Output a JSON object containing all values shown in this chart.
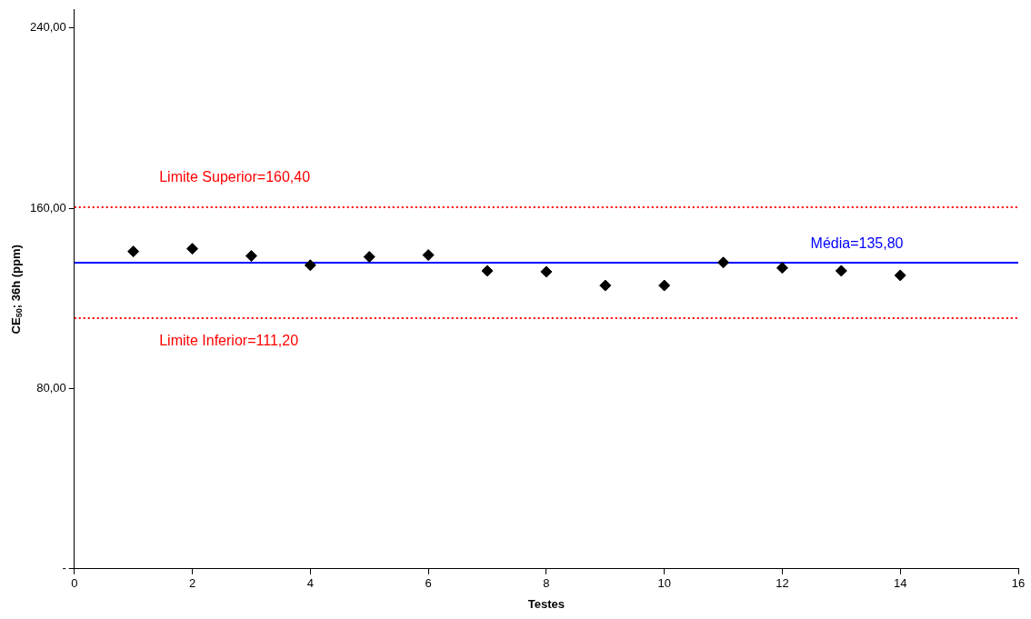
{
  "chart_data": {
    "type": "scatter",
    "xlabel": "Testes",
    "ylabel": "CE$_{50}$; 36h (ppm)",
    "x": [
      1,
      2,
      3,
      4,
      5,
      6,
      7,
      8,
      9,
      10,
      11,
      12,
      13,
      14
    ],
    "series": [
      {
        "color": "#000000",
        "values": [
          140.8,
          142.0,
          138.8,
          134.7,
          138.4,
          139.2,
          132.2,
          131.8,
          125.7,
          125.7,
          135.9,
          133.5,
          132.2,
          130.2
        ]
      }
    ],
    "marker": "diamond",
    "xlim": [
      0,
      16
    ],
    "xticks": [
      0,
      2,
      4,
      6,
      8,
      10,
      12,
      14,
      16
    ],
    "ylim": [
      0,
      248
    ],
    "yticks": [
      {
        "value": 0,
        "label": "-"
      },
      {
        "value": 80,
        "label": "80,00"
      },
      {
        "value": 160,
        "label": "160,00"
      },
      {
        "value": 240,
        "label": "240,00"
      }
    ],
    "ref_lines": [
      {
        "axis": "y",
        "value": 160.4,
        "label": "Limite Superior=160,40",
        "color": "#ff0000",
        "line_style": "dotted"
      },
      {
        "axis": "y",
        "value": 135.8,
        "label": "Média=135,80",
        "color": "#0000ff",
        "line_style": "solid"
      },
      {
        "axis": "y",
        "value": 111.2,
        "label": "Limite Inferior=111,20",
        "color": "#ff0000",
        "line_style": "dotted"
      }
    ],
    "grid": false,
    "legend": false
  }
}
